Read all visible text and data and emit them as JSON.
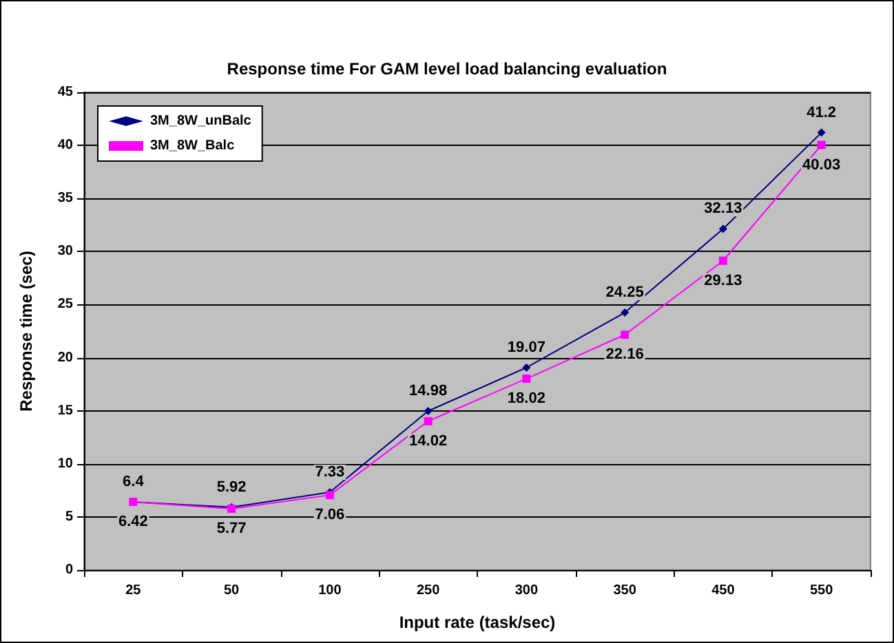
{
  "chart_data": {
    "type": "line",
    "title": "Response time For GAM level load balancing evaluation",
    "xlabel": "Input rate (task/sec)",
    "ylabel": "Response time (sec)",
    "categories": [
      "25",
      "50",
      "100",
      "250",
      "300",
      "350",
      "450",
      "550"
    ],
    "series": [
      {
        "name": "3M_8W_unBalc",
        "color": "#000080",
        "marker": "diamond",
        "values": [
          6.4,
          5.92,
          7.33,
          14.98,
          19.07,
          24.25,
          32.13,
          41.2
        ]
      },
      {
        "name": "3M_8W_Balc",
        "color": "#ff00ff",
        "marker": "square",
        "values": [
          6.42,
          5.77,
          7.06,
          14.02,
          18.02,
          22.16,
          29.13,
          40.03
        ]
      }
    ],
    "ylim": [
      0,
      45
    ],
    "yticks": [
      0,
      5,
      10,
      15,
      20,
      25,
      30,
      35,
      40,
      45
    ],
    "grid": "y",
    "legend": "top left",
    "data_labels": true,
    "line_style": "solid"
  }
}
